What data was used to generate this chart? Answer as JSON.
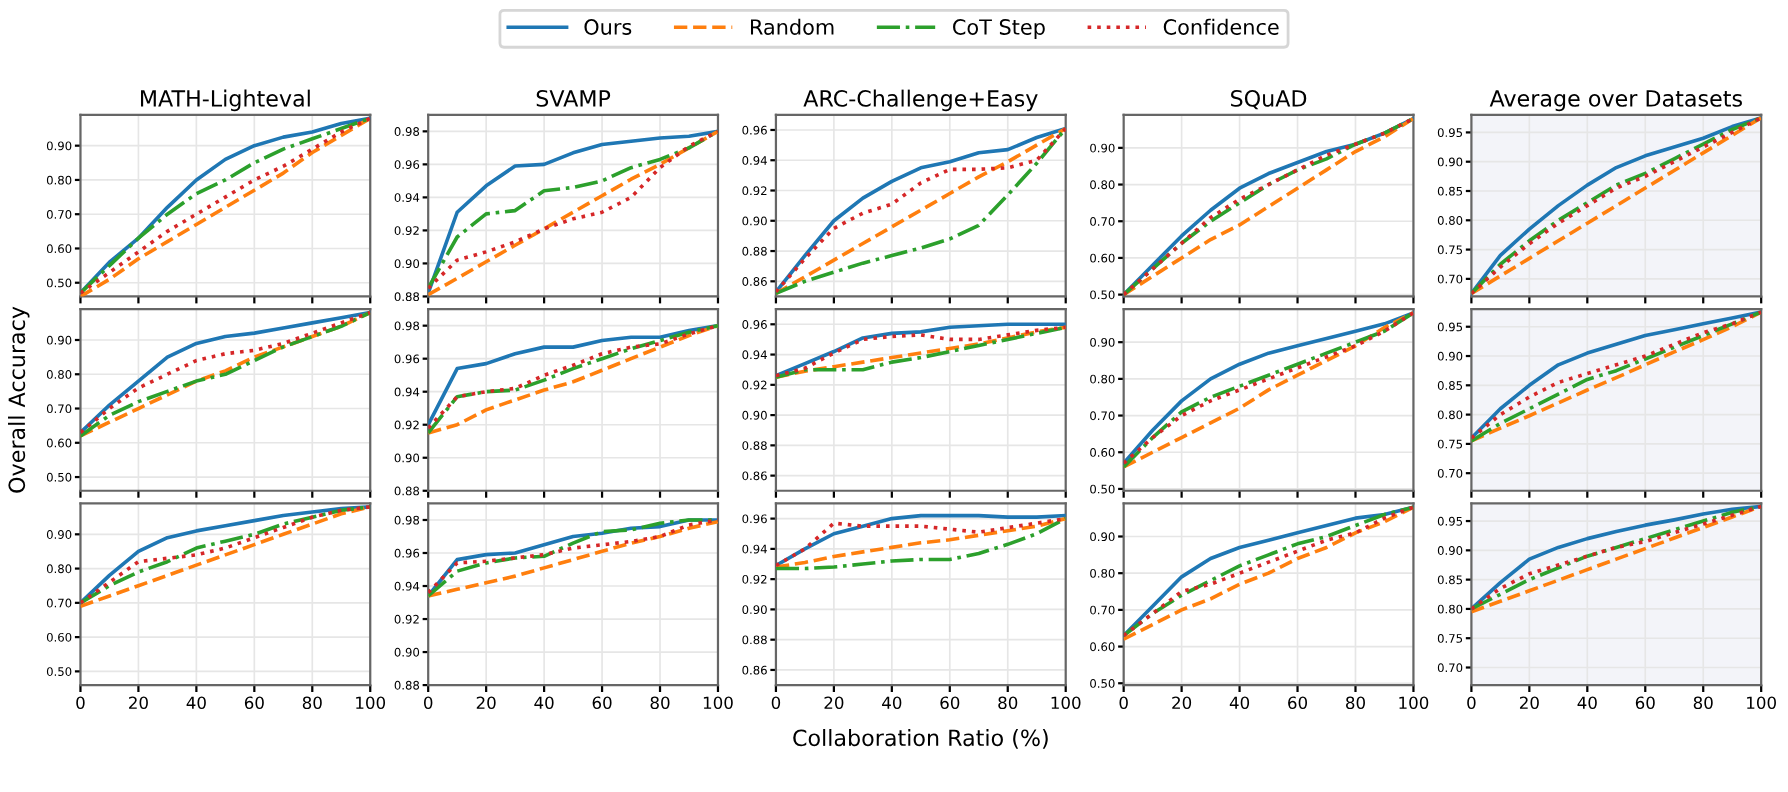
{
  "chart_data": [
    {
      "type": "line",
      "title": "MATH-Lighteval",
      "legend": "top",
      "x": [
        0,
        10,
        20,
        30,
        40,
        50,
        60,
        70,
        80,
        90,
        100
      ],
      "xlim": [
        0,
        100
      ],
      "xticks": [
        0,
        20,
        40,
        60,
        80,
        100
      ],
      "ylim": [
        0.46,
        0.99
      ],
      "yticks": [
        {
          "value": 0.5,
          "label": "0.50"
        },
        {
          "value": 0.6,
          "label": "0.60"
        },
        {
          "value": 0.7,
          "label": "0.70"
        },
        {
          "value": 0.8,
          "label": "0.80"
        },
        {
          "value": 0.9,
          "label": "0.90"
        }
      ],
      "grid": true,
      "tick_labels": "y",
      "series": [
        {
          "name": "Ours",
          "color": "#1f77b4",
          "line_style": "solid",
          "values": [
            0.47,
            0.56,
            0.63,
            0.72,
            0.8,
            0.86,
            0.9,
            0.925,
            0.94,
            0.965,
            0.98
          ]
        },
        {
          "name": "Random",
          "color": "#ff7f0e",
          "line_style": "dashed",
          "values": [
            0.46,
            0.51,
            0.57,
            0.62,
            0.67,
            0.72,
            0.77,
            0.82,
            0.88,
            0.93,
            0.98
          ]
        },
        {
          "name": "CoT Step",
          "color": "#2ca02c",
          "line_style": "dashdot",
          "values": [
            0.47,
            0.55,
            0.63,
            0.7,
            0.76,
            0.8,
            0.85,
            0.89,
            0.92,
            0.95,
            0.98
          ]
        },
        {
          "name": "Confidence",
          "color": "#d62728",
          "line_style": "dotted",
          "values": [
            0.47,
            0.53,
            0.59,
            0.65,
            0.7,
            0.75,
            0.8,
            0.84,
            0.89,
            0.94,
            0.98
          ]
        }
      ]
    },
    {
      "type": "line",
      "title": "SVAMP",
      "x": [
        0,
        10,
        20,
        30,
        40,
        50,
        60,
        70,
        80,
        90,
        100
      ],
      "xlim": [
        0,
        100
      ],
      "xticks": [
        0,
        20,
        40,
        60,
        80,
        100
      ],
      "ylim": [
        0.88,
        0.99
      ],
      "yticks": [
        0.88,
        {
          "value": 0.9,
          "label": "0.90"
        },
        0.92,
        0.94,
        0.96,
        0.98
      ],
      "grid": true,
      "tick_labels": "y",
      "series": [
        {
          "name": "Ours",
          "color": "#1f77b4",
          "line_style": "solid",
          "values": [
            0.882,
            0.931,
            0.947,
            0.959,
            0.96,
            0.967,
            0.972,
            0.974,
            0.976,
            0.977,
            0.98
          ]
        },
        {
          "name": "Random",
          "color": "#ff7f0e",
          "line_style": "dashed",
          "values": [
            0.881,
            0.891,
            0.901,
            0.911,
            0.921,
            0.931,
            0.941,
            0.951,
            0.96,
            0.97,
            0.98
          ]
        },
        {
          "name": "CoT Step",
          "color": "#2ca02c",
          "line_style": "dashdot",
          "values": [
            0.885,
            0.916,
            0.93,
            0.932,
            0.944,
            0.946,
            0.95,
            0.958,
            0.963,
            0.97,
            0.98
          ]
        },
        {
          "name": "Confidence",
          "color": "#d62728",
          "line_style": "dotted",
          "values": [
            0.885,
            0.902,
            0.907,
            0.913,
            0.921,
            0.927,
            0.931,
            0.94,
            0.958,
            0.971,
            0.98
          ]
        }
      ]
    },
    {
      "type": "line",
      "title": "ARC-Challenge+Easy",
      "x": [
        0,
        10,
        20,
        30,
        40,
        50,
        60,
        70,
        80,
        90,
        100
      ],
      "xlim": [
        0,
        100
      ],
      "xticks": [
        0,
        20,
        40,
        60,
        80,
        100
      ],
      "ylim": [
        0.85,
        0.97
      ],
      "yticks": [
        0.86,
        0.88,
        {
          "value": 0.9,
          "label": "0.90"
        },
        0.92,
        0.94,
        0.96
      ],
      "grid": true,
      "tick_labels": "y",
      "series": [
        {
          "name": "Ours",
          "color": "#1f77b4",
          "line_style": "solid",
          "values": [
            0.853,
            0.877,
            0.9,
            0.915,
            0.926,
            0.935,
            0.939,
            0.945,
            0.947,
            0.955,
            0.961
          ]
        },
        {
          "name": "Random",
          "color": "#ff7f0e",
          "line_style": "dashed",
          "values": [
            0.852,
            0.863,
            0.874,
            0.885,
            0.896,
            0.907,
            0.918,
            0.929,
            0.939,
            0.95,
            0.961
          ]
        },
        {
          "name": "CoT Step",
          "color": "#2ca02c",
          "line_style": "dashdot",
          "values": [
            0.852,
            0.86,
            0.866,
            0.872,
            0.877,
            0.882,
            0.888,
            0.897,
            0.917,
            0.938,
            0.961
          ]
        },
        {
          "name": "Confidence",
          "color": "#d62728",
          "line_style": "dotted",
          "values": [
            0.853,
            0.875,
            0.895,
            0.905,
            0.911,
            0.925,
            0.934,
            0.934,
            0.935,
            0.94,
            0.961
          ]
        }
      ]
    },
    {
      "type": "line",
      "title": "SQuAD",
      "x": [
        0,
        10,
        20,
        30,
        40,
        50,
        60,
        70,
        80,
        90,
        100
      ],
      "xlim": [
        0,
        100
      ],
      "xticks": [
        0,
        20,
        40,
        60,
        80,
        100
      ],
      "ylim": [
        0.495,
        0.99
      ],
      "yticks": [
        {
          "value": 0.5,
          "label": "0.50"
        },
        {
          "value": 0.6,
          "label": "0.60"
        },
        {
          "value": 0.7,
          "label": "0.70"
        },
        {
          "value": 0.8,
          "label": "0.80"
        },
        {
          "value": 0.9,
          "label": "0.90"
        }
      ],
      "grid": true,
      "tick_labels": "y",
      "series": [
        {
          "name": "Ours",
          "color": "#1f77b4",
          "line_style": "solid",
          "values": [
            0.5,
            0.58,
            0.66,
            0.73,
            0.79,
            0.83,
            0.86,
            0.89,
            0.91,
            0.94,
            0.98
          ]
        },
        {
          "name": "Random",
          "color": "#ff7f0e",
          "line_style": "dashed",
          "values": [
            0.5,
            0.55,
            0.6,
            0.65,
            0.69,
            0.74,
            0.79,
            0.84,
            0.89,
            0.93,
            0.98
          ]
        },
        {
          "name": "CoT Step",
          "color": "#2ca02c",
          "line_style": "dashdot",
          "values": [
            0.5,
            0.57,
            0.64,
            0.7,
            0.75,
            0.8,
            0.84,
            0.87,
            0.91,
            0.94,
            0.98
          ]
        },
        {
          "name": "Confidence",
          "color": "#d62728",
          "line_style": "dotted",
          "values": [
            0.5,
            0.57,
            0.64,
            0.71,
            0.76,
            0.8,
            0.84,
            0.88,
            0.91,
            0.94,
            0.98
          ]
        }
      ]
    },
    {
      "type": "line",
      "title": "Average over Datasets",
      "bands": [
        {
          "axis": "y",
          "from": 0.67,
          "to": 0.98,
          "color": "#f3f4f9"
        }
      ],
      "x": [
        0,
        10,
        20,
        30,
        40,
        50,
        60,
        70,
        80,
        90,
        100
      ],
      "xlim": [
        0,
        100
      ],
      "xticks": [
        0,
        20,
        40,
        60,
        80,
        100
      ],
      "ylim": [
        0.67,
        0.98
      ],
      "yticks": [
        {
          "value": 0.7,
          "label": "0.70"
        },
        0.75,
        {
          "value": 0.8,
          "label": "0.80"
        },
        0.85,
        {
          "value": 0.9,
          "label": "0.90"
        },
        0.95
      ],
      "grid": true,
      "tick_labels": "y",
      "series": [
        {
          "name": "Ours",
          "color": "#1f77b4",
          "line_style": "solid",
          "values": [
            0.675,
            0.74,
            0.785,
            0.825,
            0.86,
            0.89,
            0.91,
            0.925,
            0.94,
            0.96,
            0.975
          ]
        },
        {
          "name": "Random",
          "color": "#ff7f0e",
          "line_style": "dashed",
          "values": [
            0.675,
            0.705,
            0.735,
            0.765,
            0.795,
            0.825,
            0.855,
            0.885,
            0.915,
            0.945,
            0.975
          ]
        },
        {
          "name": "CoT Step",
          "color": "#2ca02c",
          "line_style": "dashdot",
          "values": [
            0.675,
            0.725,
            0.765,
            0.8,
            0.83,
            0.86,
            0.88,
            0.905,
            0.93,
            0.955,
            0.975
          ]
        },
        {
          "name": "Confidence",
          "color": "#d62728",
          "line_style": "dotted",
          "values": [
            0.675,
            0.72,
            0.76,
            0.795,
            0.825,
            0.855,
            0.875,
            0.9,
            0.925,
            0.95,
            0.975
          ]
        }
      ]
    },
    {
      "type": "line",
      "ylabel": "Overall Accuracy",
      "x": [
        0,
        10,
        20,
        30,
        40,
        50,
        60,
        70,
        80,
        90,
        100
      ],
      "xlim": [
        0,
        100
      ],
      "xticks": [
        0,
        20,
        40,
        60,
        80,
        100
      ],
      "ylim": [
        0.46,
        0.99
      ],
      "yticks": [
        {
          "value": 0.5,
          "label": "0.50"
        },
        {
          "value": 0.6,
          "label": "0.60"
        },
        {
          "value": 0.7,
          "label": "0.70"
        },
        {
          "value": 0.8,
          "label": "0.80"
        },
        {
          "value": 0.9,
          "label": "0.90"
        }
      ],
      "grid": true,
      "tick_labels": "y",
      "series": [
        {
          "name": "Ours",
          "color": "#1f77b4",
          "line_style": "solid",
          "values": [
            0.63,
            0.71,
            0.78,
            0.85,
            0.89,
            0.91,
            0.92,
            0.935,
            0.95,
            0.965,
            0.98
          ]
        },
        {
          "name": "Random",
          "color": "#ff7f0e",
          "line_style": "dashed",
          "values": [
            0.62,
            0.66,
            0.7,
            0.74,
            0.78,
            0.81,
            0.85,
            0.88,
            0.91,
            0.94,
            0.98
          ]
        },
        {
          "name": "CoT Step",
          "color": "#2ca02c",
          "line_style": "dashdot",
          "values": [
            0.62,
            0.68,
            0.72,
            0.75,
            0.78,
            0.8,
            0.84,
            0.88,
            0.91,
            0.94,
            0.98
          ]
        },
        {
          "name": "Confidence",
          "color": "#d62728",
          "line_style": "dotted",
          "values": [
            0.63,
            0.7,
            0.76,
            0.8,
            0.84,
            0.86,
            0.87,
            0.89,
            0.92,
            0.95,
            0.98
          ]
        }
      ]
    },
    {
      "type": "line",
      "x": [
        0,
        10,
        20,
        30,
        40,
        50,
        60,
        70,
        80,
        90,
        100
      ],
      "xlim": [
        0,
        100
      ],
      "xticks": [
        0,
        20,
        40,
        60,
        80,
        100
      ],
      "ylim": [
        0.88,
        0.99
      ],
      "yticks": [
        0.88,
        {
          "value": 0.9,
          "label": "0.90"
        },
        0.92,
        0.94,
        0.96,
        0.98
      ],
      "grid": true,
      "tick_labels": "y",
      "series": [
        {
          "name": "Ours",
          "color": "#1f77b4",
          "line_style": "solid",
          "values": [
            0.92,
            0.954,
            0.957,
            0.963,
            0.967,
            0.967,
            0.971,
            0.973,
            0.973,
            0.977,
            0.98
          ]
        },
        {
          "name": "Random",
          "color": "#ff7f0e",
          "line_style": "dashed",
          "values": [
            0.915,
            0.92,
            0.929,
            0.935,
            0.941,
            0.946,
            0.953,
            0.96,
            0.967,
            0.974,
            0.98
          ]
        },
        {
          "name": "CoT Step",
          "color": "#2ca02c",
          "line_style": "dashdot",
          "values": [
            0.915,
            0.937,
            0.94,
            0.941,
            0.947,
            0.954,
            0.96,
            0.966,
            0.971,
            0.976,
            0.98
          ]
        },
        {
          "name": "Confidence",
          "color": "#d62728",
          "line_style": "dotted",
          "values": [
            0.918,
            0.937,
            0.94,
            0.942,
            0.95,
            0.956,
            0.963,
            0.967,
            0.969,
            0.975,
            0.98
          ]
        }
      ]
    },
    {
      "type": "line",
      "x": [
        0,
        10,
        20,
        30,
        40,
        50,
        60,
        70,
        80,
        90,
        100
      ],
      "xlim": [
        0,
        100
      ],
      "xticks": [
        0,
        20,
        40,
        60,
        80,
        100
      ],
      "ylim": [
        0.85,
        0.97
      ],
      "yticks": [
        0.86,
        0.88,
        {
          "value": 0.9,
          "label": "0.90"
        },
        0.92,
        0.94,
        0.96
      ],
      "grid": true,
      "tick_labels": "y",
      "series": [
        {
          "name": "Ours",
          "color": "#1f77b4",
          "line_style": "solid",
          "values": [
            0.926,
            0.934,
            0.942,
            0.951,
            0.954,
            0.955,
            0.958,
            0.959,
            0.96,
            0.96,
            0.96
          ]
        },
        {
          "name": "Random",
          "color": "#ff7f0e",
          "line_style": "dashed",
          "values": [
            0.925,
            0.929,
            0.932,
            0.935,
            0.938,
            0.941,
            0.944,
            0.947,
            0.951,
            0.955,
            0.958
          ]
        },
        {
          "name": "CoT Step",
          "color": "#2ca02c",
          "line_style": "dashdot",
          "values": [
            0.925,
            0.93,
            0.93,
            0.93,
            0.935,
            0.938,
            0.942,
            0.946,
            0.95,
            0.954,
            0.958
          ]
        },
        {
          "name": "Confidence",
          "color": "#d62728",
          "line_style": "dotted",
          "values": [
            0.926,
            0.931,
            0.941,
            0.95,
            0.952,
            0.953,
            0.95,
            0.95,
            0.953,
            0.956,
            0.958
          ]
        }
      ]
    },
    {
      "type": "line",
      "x": [
        0,
        10,
        20,
        30,
        40,
        50,
        60,
        70,
        80,
        90,
        100
      ],
      "xlim": [
        0,
        100
      ],
      "xticks": [
        0,
        20,
        40,
        60,
        80,
        100
      ],
      "ylim": [
        0.495,
        0.99
      ],
      "yticks": [
        {
          "value": 0.5,
          "label": "0.50"
        },
        {
          "value": 0.6,
          "label": "0.60"
        },
        {
          "value": 0.7,
          "label": "0.70"
        },
        {
          "value": 0.8,
          "label": "0.80"
        },
        {
          "value": 0.9,
          "label": "0.90"
        }
      ],
      "grid": true,
      "tick_labels": "y",
      "series": [
        {
          "name": "Ours",
          "color": "#1f77b4",
          "line_style": "solid",
          "values": [
            0.57,
            0.66,
            0.74,
            0.8,
            0.84,
            0.87,
            0.89,
            0.91,
            0.93,
            0.95,
            0.98
          ]
        },
        {
          "name": "Random",
          "color": "#ff7f0e",
          "line_style": "dashed",
          "values": [
            0.56,
            0.6,
            0.64,
            0.68,
            0.72,
            0.77,
            0.81,
            0.85,
            0.89,
            0.94,
            0.98
          ]
        },
        {
          "name": "CoT Step",
          "color": "#2ca02c",
          "line_style": "dashdot",
          "values": [
            0.56,
            0.64,
            0.71,
            0.75,
            0.78,
            0.81,
            0.84,
            0.87,
            0.9,
            0.93,
            0.98
          ]
        },
        {
          "name": "Confidence",
          "color": "#d62728",
          "line_style": "dotted",
          "values": [
            0.57,
            0.64,
            0.7,
            0.74,
            0.77,
            0.8,
            0.83,
            0.86,
            0.89,
            0.93,
            0.98
          ]
        }
      ]
    },
    {
      "type": "line",
      "bands": [
        {
          "axis": "y",
          "from": 0.67,
          "to": 0.98,
          "color": "#f3f4f9"
        }
      ],
      "x": [
        0,
        10,
        20,
        30,
        40,
        50,
        60,
        70,
        80,
        90,
        100
      ],
      "xlim": [
        0,
        100
      ],
      "xticks": [
        0,
        20,
        40,
        60,
        80,
        100
      ],
      "ylim": [
        0.67,
        0.98
      ],
      "yticks": [
        {
          "value": 0.7,
          "label": "0.70"
        },
        0.75,
        {
          "value": 0.8,
          "label": "0.80"
        },
        0.85,
        {
          "value": 0.9,
          "label": "0.90"
        },
        0.95
      ],
      "grid": true,
      "tick_labels": "y",
      "series": [
        {
          "name": "Ours",
          "color": "#1f77b4",
          "line_style": "solid",
          "values": [
            0.76,
            0.81,
            0.85,
            0.885,
            0.905,
            0.92,
            0.935,
            0.945,
            0.955,
            0.965,
            0.975
          ]
        },
        {
          "name": "Random",
          "color": "#ff7f0e",
          "line_style": "dashed",
          "values": [
            0.755,
            0.777,
            0.798,
            0.82,
            0.842,
            0.863,
            0.885,
            0.907,
            0.928,
            0.95,
            0.975
          ]
        },
        {
          "name": "CoT Step",
          "color": "#2ca02c",
          "line_style": "dashdot",
          "values": [
            0.755,
            0.785,
            0.81,
            0.835,
            0.86,
            0.875,
            0.895,
            0.915,
            0.935,
            0.955,
            0.975
          ]
        },
        {
          "name": "Confidence",
          "color": "#d62728",
          "line_style": "dotted",
          "values": [
            0.76,
            0.8,
            0.83,
            0.855,
            0.87,
            0.885,
            0.9,
            0.92,
            0.94,
            0.955,
            0.975
          ]
        }
      ]
    },
    {
      "type": "line",
      "x": [
        0,
        10,
        20,
        30,
        40,
        50,
        60,
        70,
        80,
        90,
        100
      ],
      "xlim": [
        0,
        100
      ],
      "xticks": [
        0,
        20,
        40,
        60,
        80,
        100
      ],
      "ylim": [
        0.46,
        0.99
      ],
      "yticks": [
        {
          "value": 0.5,
          "label": "0.50"
        },
        {
          "value": 0.6,
          "label": "0.60"
        },
        {
          "value": 0.7,
          "label": "0.70"
        },
        {
          "value": 0.8,
          "label": "0.80"
        },
        {
          "value": 0.9,
          "label": "0.90"
        }
      ],
      "grid": true,
      "series": [
        {
          "name": "Ours",
          "color": "#1f77b4",
          "line_style": "solid",
          "values": [
            0.7,
            0.78,
            0.85,
            0.89,
            0.91,
            0.925,
            0.94,
            0.955,
            0.965,
            0.975,
            0.98
          ]
        },
        {
          "name": "Random",
          "color": "#ff7f0e",
          "line_style": "dashed",
          "values": [
            0.69,
            0.72,
            0.75,
            0.78,
            0.81,
            0.84,
            0.87,
            0.9,
            0.93,
            0.96,
            0.98
          ]
        },
        {
          "name": "CoT Step",
          "color": "#2ca02c",
          "line_style": "dashdot",
          "values": [
            0.7,
            0.75,
            0.79,
            0.82,
            0.86,
            0.88,
            0.9,
            0.93,
            0.95,
            0.97,
            0.98
          ]
        },
        {
          "name": "Confidence",
          "color": "#d62728",
          "line_style": "dotted",
          "values": [
            0.7,
            0.76,
            0.82,
            0.83,
            0.84,
            0.86,
            0.89,
            0.92,
            0.95,
            0.97,
            0.98
          ]
        }
      ]
    },
    {
      "type": "line",
      "x": [
        0,
        10,
        20,
        30,
        40,
        50,
        60,
        70,
        80,
        90,
        100
      ],
      "xlim": [
        0,
        100
      ],
      "xticks": [
        0,
        20,
        40,
        60,
        80,
        100
      ],
      "ylim": [
        0.88,
        0.99
      ],
      "yticks": [
        0.88,
        {
          "value": 0.9,
          "label": "0.90"
        },
        0.92,
        0.94,
        0.96,
        0.98
      ],
      "grid": true,
      "series": [
        {
          "name": "Ours",
          "color": "#1f77b4",
          "line_style": "solid",
          "values": [
            0.934,
            0.956,
            0.959,
            0.96,
            0.965,
            0.97,
            0.972,
            0.975,
            0.976,
            0.98,
            0.98
          ]
        },
        {
          "name": "Random",
          "color": "#ff7f0e",
          "line_style": "dashed",
          "values": [
            0.934,
            0.938,
            0.942,
            0.946,
            0.951,
            0.956,
            0.961,
            0.966,
            0.97,
            0.975,
            0.979
          ]
        },
        {
          "name": "CoT Step",
          "color": "#2ca02c",
          "line_style": "dashdot",
          "values": [
            0.934,
            0.949,
            0.954,
            0.957,
            0.958,
            0.966,
            0.973,
            0.974,
            0.978,
            0.98,
            0.98
          ]
        },
        {
          "name": "Confidence",
          "color": "#d62728",
          "line_style": "dotted",
          "values": [
            0.936,
            0.954,
            0.955,
            0.957,
            0.959,
            0.963,
            0.965,
            0.967,
            0.97,
            0.977,
            0.98
          ]
        }
      ]
    },
    {
      "type": "line",
      "xlabel": "Collaboration Ratio (%)",
      "x": [
        0,
        10,
        20,
        30,
        40,
        50,
        60,
        70,
        80,
        90,
        100
      ],
      "xlim": [
        0,
        100
      ],
      "xticks": [
        0,
        20,
        40,
        60,
        80,
        100
      ],
      "ylim": [
        0.85,
        0.97
      ],
      "yticks": [
        0.86,
        0.88,
        {
          "value": 0.9,
          "label": "0.90"
        },
        0.92,
        0.94,
        0.96
      ],
      "grid": true,
      "series": [
        {
          "name": "Ours",
          "color": "#1f77b4",
          "line_style": "solid",
          "values": [
            0.929,
            0.94,
            0.95,
            0.955,
            0.96,
            0.962,
            0.962,
            0.962,
            0.961,
            0.961,
            0.962
          ]
        },
        {
          "name": "Random",
          "color": "#ff7f0e",
          "line_style": "dashed",
          "values": [
            0.928,
            0.931,
            0.935,
            0.938,
            0.941,
            0.944,
            0.946,
            0.949,
            0.952,
            0.955,
            0.96
          ]
        },
        {
          "name": "CoT Step",
          "color": "#2ca02c",
          "line_style": "dashdot",
          "values": [
            0.927,
            0.927,
            0.928,
            0.93,
            0.932,
            0.933,
            0.933,
            0.937,
            0.943,
            0.95,
            0.96
          ]
        },
        {
          "name": "Confidence",
          "color": "#d62728",
          "line_style": "dotted",
          "values": [
            0.929,
            0.94,
            0.957,
            0.955,
            0.955,
            0.955,
            0.953,
            0.951,
            0.954,
            0.957,
            0.96
          ]
        }
      ]
    },
    {
      "type": "line",
      "x": [
        0,
        10,
        20,
        30,
        40,
        50,
        60,
        70,
        80,
        90,
        100
      ],
      "xlim": [
        0,
        100
      ],
      "xticks": [
        0,
        20,
        40,
        60,
        80,
        100
      ],
      "ylim": [
        0.495,
        0.99
      ],
      "yticks": [
        {
          "value": 0.5,
          "label": "0.50"
        },
        {
          "value": 0.6,
          "label": "0.60"
        },
        {
          "value": 0.7,
          "label": "0.70"
        },
        {
          "value": 0.8,
          "label": "0.80"
        },
        {
          "value": 0.9,
          "label": "0.90"
        }
      ],
      "grid": true,
      "series": [
        {
          "name": "Ours",
          "color": "#1f77b4",
          "line_style": "solid",
          "values": [
            0.63,
            0.71,
            0.79,
            0.84,
            0.87,
            0.89,
            0.91,
            0.93,
            0.95,
            0.96,
            0.98
          ]
        },
        {
          "name": "Random",
          "color": "#ff7f0e",
          "line_style": "dashed",
          "values": [
            0.62,
            0.66,
            0.7,
            0.73,
            0.77,
            0.8,
            0.84,
            0.87,
            0.91,
            0.94,
            0.98
          ]
        },
        {
          "name": "CoT Step",
          "color": "#2ca02c",
          "line_style": "dashdot",
          "values": [
            0.63,
            0.69,
            0.74,
            0.78,
            0.82,
            0.85,
            0.88,
            0.9,
            0.93,
            0.96,
            0.98
          ]
        },
        {
          "name": "Confidence",
          "color": "#d62728",
          "line_style": "dotted",
          "values": [
            0.63,
            0.69,
            0.75,
            0.77,
            0.8,
            0.83,
            0.86,
            0.89,
            0.91,
            0.95,
            0.98
          ]
        }
      ]
    },
    {
      "type": "line",
      "bands": [
        {
          "axis": "y",
          "from": 0.67,
          "to": 0.98,
          "color": "#f3f4f9"
        }
      ],
      "x": [
        0,
        10,
        20,
        30,
        40,
        50,
        60,
        70,
        80,
        90,
        100
      ],
      "xlim": [
        0,
        100
      ],
      "xticks": [
        0,
        20,
        40,
        60,
        80,
        100
      ],
      "ylim": [
        0.67,
        0.98
      ],
      "yticks": [
        {
          "value": 0.7,
          "label": "0.70"
        },
        0.75,
        {
          "value": 0.8,
          "label": "0.80"
        },
        0.85,
        {
          "value": 0.9,
          "label": "0.90"
        },
        0.95
      ],
      "grid": true,
      "series": [
        {
          "name": "Ours",
          "color": "#1f77b4",
          "line_style": "solid",
          "values": [
            0.8,
            0.845,
            0.885,
            0.905,
            0.92,
            0.932,
            0.943,
            0.952,
            0.962,
            0.97,
            0.975
          ]
        },
        {
          "name": "Random",
          "color": "#ff7f0e",
          "line_style": "dashed",
          "values": [
            0.795,
            0.813,
            0.831,
            0.849,
            0.867,
            0.885,
            0.903,
            0.921,
            0.939,
            0.957,
            0.975
          ]
        },
        {
          "name": "CoT Step",
          "color": "#2ca02c",
          "line_style": "dashdot",
          "values": [
            0.8,
            0.825,
            0.85,
            0.87,
            0.89,
            0.905,
            0.92,
            0.935,
            0.95,
            0.965,
            0.975
          ]
        },
        {
          "name": "Confidence",
          "color": "#d62728",
          "line_style": "dotted",
          "values": [
            0.8,
            0.835,
            0.86,
            0.875,
            0.89,
            0.905,
            0.915,
            0.93,
            0.945,
            0.96,
            0.975
          ]
        }
      ]
    }
  ]
}
